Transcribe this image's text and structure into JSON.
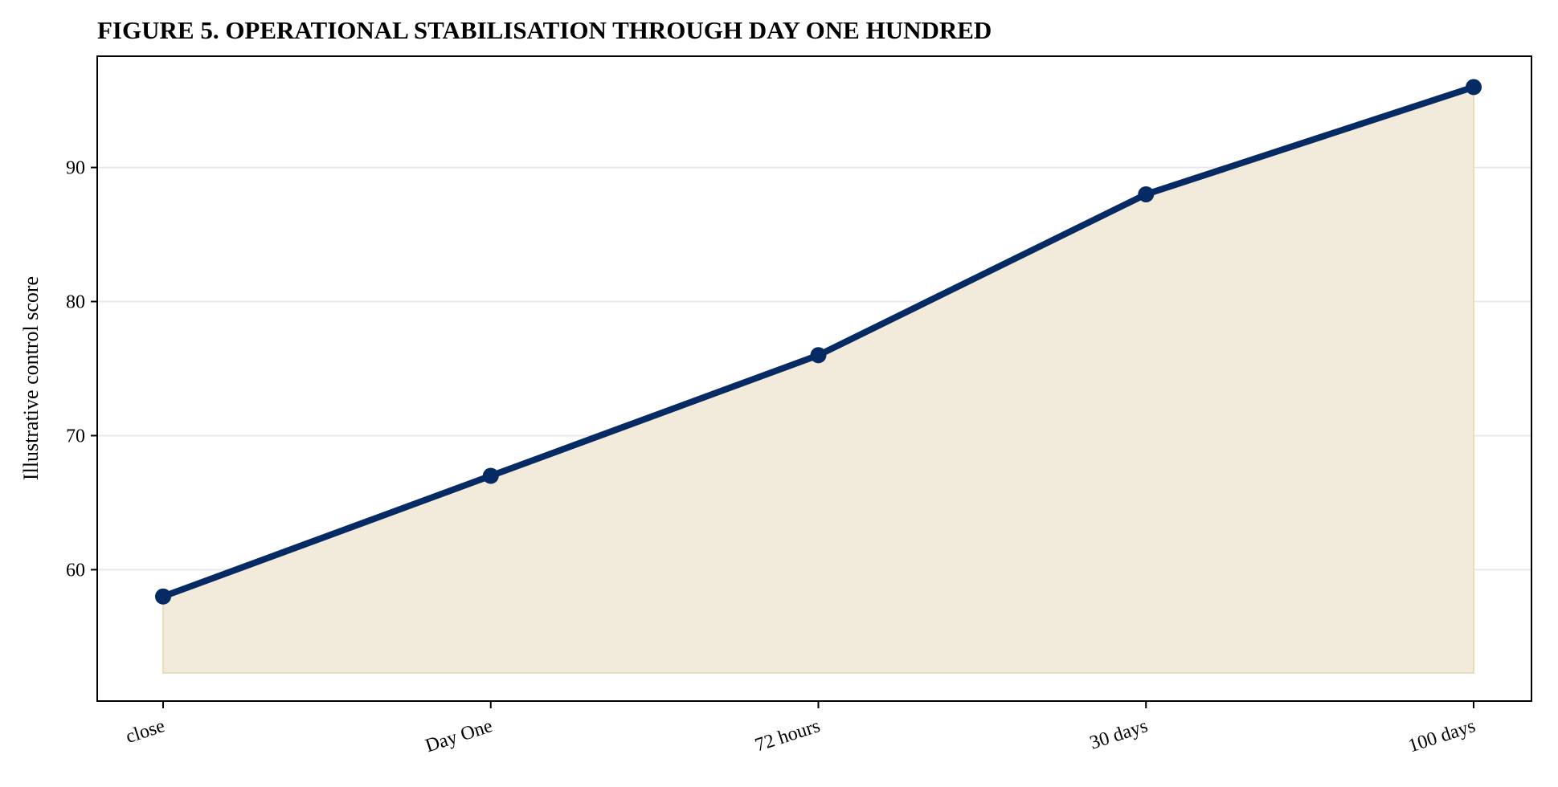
{
  "chart_data": {
    "type": "line",
    "title": "FIGURE 5. OPERATIONAL STABILISATION THROUGH DAY ONE HUNDRED",
    "xlabel": "",
    "ylabel": "Illustrative control score",
    "categories": [
      "close",
      "Day One",
      "72 hours",
      "30 days",
      "100 days"
    ],
    "series": [
      {
        "values": [
          58,
          67,
          76,
          88,
          96
        ]
      }
    ],
    "area_baseline": 52.3,
    "ylim": [
      50.2,
      98.3
    ],
    "yticks": [
      60,
      70,
      80,
      90
    ],
    "grid": "horizontal",
    "legend": "none",
    "colors": {
      "line": "#062a63",
      "area": "#f2ebdb",
      "grid": "#e8e8e8",
      "axis": "#000000"
    }
  }
}
